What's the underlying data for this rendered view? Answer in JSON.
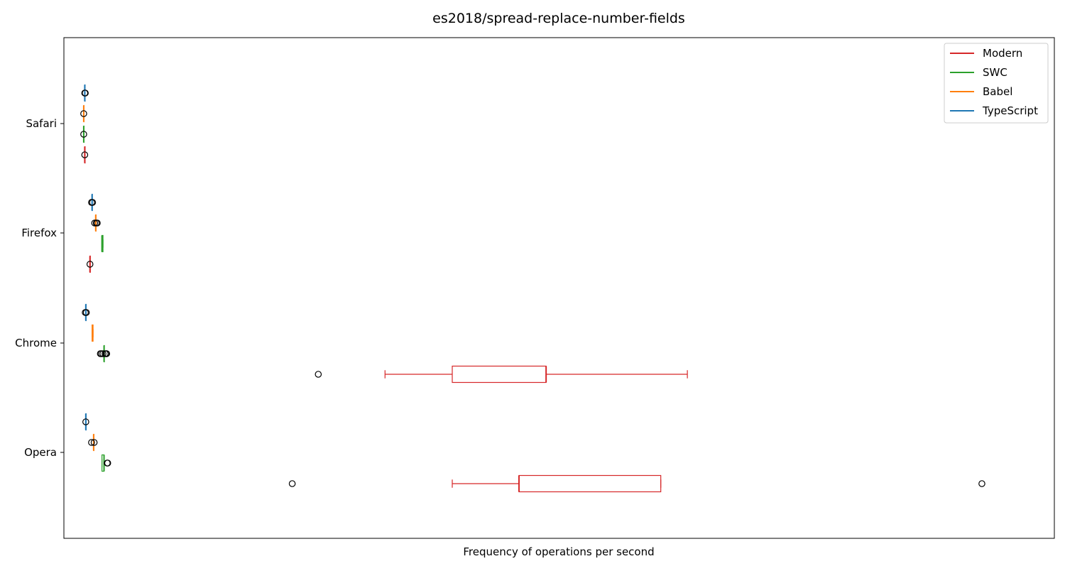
{
  "chart_data": {
    "type": "boxplot",
    "orientation": "horizontal",
    "title": "es2018/spread-replace-number-fields",
    "xlabel": "Frequency of operations per second",
    "ylabel": "",
    "x_ticks_shown": false,
    "grid": false,
    "legend_position": "top-right",
    "categories": [
      "Opera",
      "Chrome",
      "Firefox",
      "Safari"
    ],
    "series": [
      {
        "name": "Modern",
        "color": "#d62728",
        "boxes": {
          "Opera": {
            "whislo": 695,
            "q1": 823,
            "med": 823,
            "q3": 1095,
            "whishi": 1095,
            "fliers": [
              388,
              1711
            ]
          },
          "Chrome": {
            "whislo": 566,
            "q1": 695,
            "med": 875,
            "q3": 875,
            "whishi": 1146,
            "fliers": [
              438
            ]
          },
          "Firefox": {
            "whislo": 0,
            "q1": 0,
            "med": 0,
            "q3": 0,
            "whishi": 0,
            "fliers": [
              0
            ]
          },
          "Safari": {
            "whislo": -10,
            "q1": -10,
            "med": -10,
            "q3": -10,
            "whishi": -10,
            "fliers": [
              -10
            ]
          }
        }
      },
      {
        "name": "SWC",
        "color": "#2ca02c",
        "boxes": {
          "Opera": {
            "whislo": 23,
            "q1": 23,
            "med": 27,
            "q3": 27,
            "whishi": 27,
            "fliers": [
              33,
              34
            ]
          },
          "Chrome": {
            "whislo": 27,
            "q1": 27,
            "med": 27,
            "q3": 27,
            "whishi": 27,
            "fliers": [
              20,
              22,
              25,
              29,
              31,
              32
            ]
          },
          "Firefox": {
            "whislo": 23,
            "q1": 23,
            "med": 23,
            "q3": 25,
            "whishi": 25,
            "fliers": []
          },
          "Safari": {
            "whislo": -12,
            "q1": -12,
            "med": -12,
            "q3": -12,
            "whishi": -12,
            "fliers": [
              -12
            ]
          }
        }
      },
      {
        "name": "Babel",
        "color": "#ff7f0e",
        "boxes": {
          "Opera": {
            "whislo": 7,
            "q1": 7,
            "med": 7,
            "q3": 7,
            "whishi": 7,
            "fliers": [
              3,
              8
            ]
          },
          "Chrome": {
            "whislo": 4,
            "q1": 4,
            "med": 5,
            "q3": 6,
            "whishi": 6,
            "fliers": []
          },
          "Firefox": {
            "whislo": 11,
            "q1": 11,
            "med": 11,
            "q3": 11,
            "whishi": 11,
            "fliers": [
              9,
              12,
              14
            ]
          },
          "Safari": {
            "whislo": -12,
            "q1": -12,
            "med": -12,
            "q3": -12,
            "whishi": -12,
            "fliers": [
              -12
            ]
          }
        }
      },
      {
        "name": "TypeScript",
        "color": "#1f77b4",
        "boxes": {
          "Opera": {
            "whislo": -8,
            "q1": -8,
            "med": -8,
            "q3": -8,
            "whishi": -8,
            "fliers": [
              -8
            ]
          },
          "Chrome": {
            "whislo": -8,
            "q1": -8,
            "med": -8,
            "q3": -8,
            "whishi": -8,
            "fliers": [
              -9,
              -7
            ]
          },
          "Firefox": {
            "whislo": 4,
            "q1": 4,
            "med": 4,
            "q3": 4,
            "whishi": 4,
            "fliers": [
              3,
              5
            ]
          },
          "Safari": {
            "whislo": -10,
            "q1": -10,
            "med": -10,
            "q3": -10,
            "whishi": -10,
            "fliers": [
              -10,
              -9
            ]
          }
        }
      }
    ],
    "legend": [
      "Modern",
      "SWC",
      "Babel",
      "TypeScript"
    ]
  }
}
